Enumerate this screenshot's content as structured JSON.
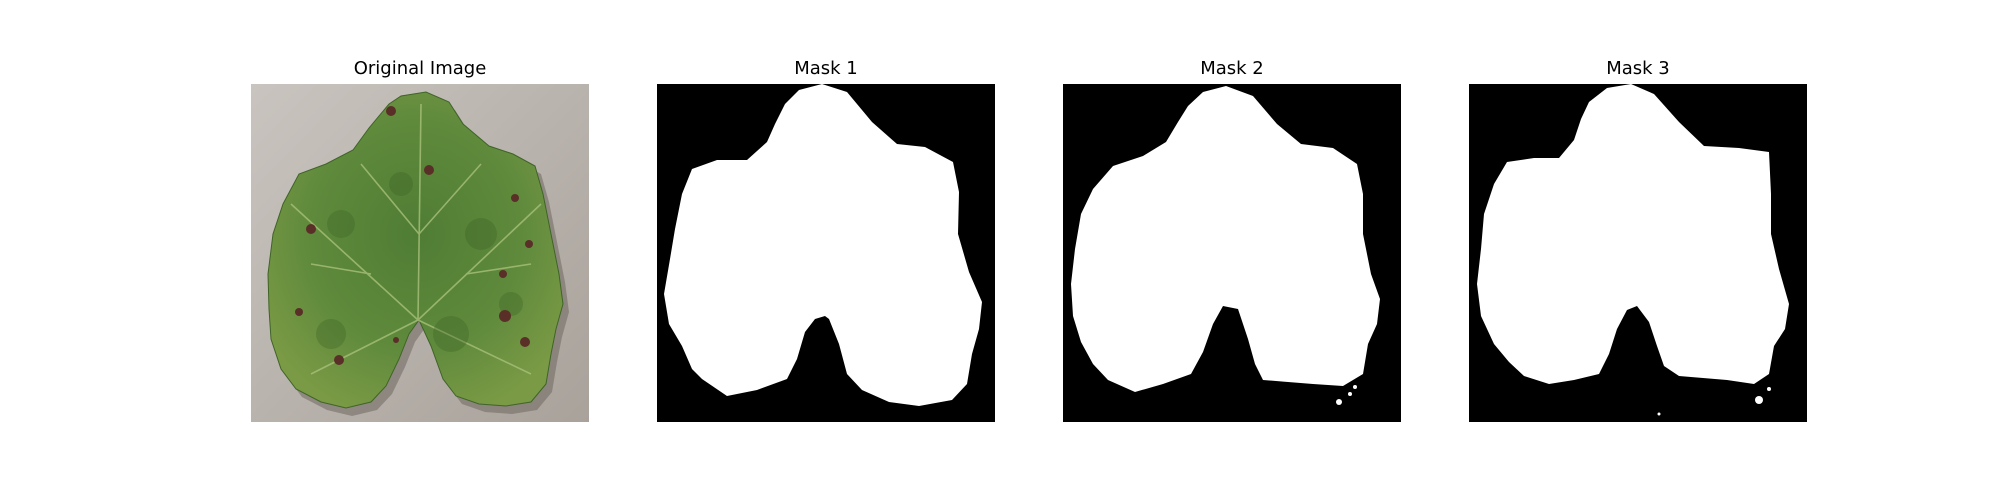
{
  "figure": {
    "background": "#ffffff",
    "panels": [
      {
        "title": "Original Image",
        "kind": "photo"
      },
      {
        "title": "Mask 1",
        "kind": "mask"
      },
      {
        "title": "Mask 2",
        "kind": "mask"
      },
      {
        "title": "Mask 3",
        "kind": "mask"
      }
    ],
    "colors": {
      "mask_background": "#000000",
      "mask_foreground": "#ffffff",
      "leaf_green": "#5f8a3c",
      "photo_background": "#bdb7b1"
    }
  }
}
